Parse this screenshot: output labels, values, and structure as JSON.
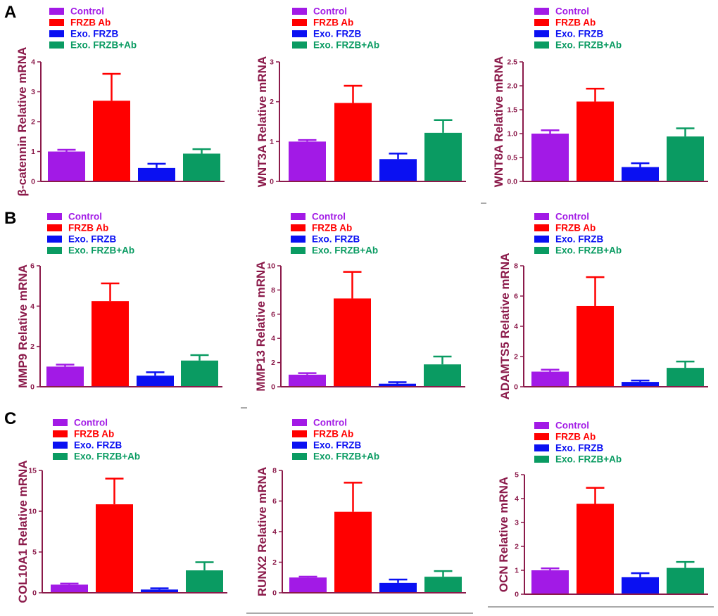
{
  "panels": [
    "A",
    "B",
    "C"
  ],
  "legend": [
    {
      "label": "Control",
      "color": "#A21AE6"
    },
    {
      "label": "FRZB Ab",
      "color": "#FF0000"
    },
    {
      "label": "Exo. FRZB",
      "color": "#0A10F2"
    },
    {
      "label": "Exo. FRZB+Ab",
      "color": "#0A9B62"
    }
  ],
  "chart_data": [
    {
      "type": "bar",
      "ylabel": "β-catennin Relative mRNA",
      "ylim": [
        0,
        4
      ],
      "ticks": [
        0,
        1,
        2,
        3,
        4
      ],
      "categories": [
        "Control",
        "FRZB Ab",
        "Exo. FRZB",
        "Exo. FRZB+Ab"
      ],
      "values": [
        1.0,
        2.7,
        0.45,
        0.93
      ],
      "errors": [
        0.06,
        0.9,
        0.14,
        0.15
      ]
    },
    {
      "type": "bar",
      "ylabel": "WNT3A Relative mRNA",
      "ylim": [
        0,
        3
      ],
      "ticks": [
        0,
        1,
        2,
        3
      ],
      "categories": [
        "Control",
        "FRZB Ab",
        "Exo. FRZB",
        "Exo. FRZB+Ab"
      ],
      "values": [
        1.0,
        1.97,
        0.56,
        1.22
      ],
      "errors": [
        0.04,
        0.43,
        0.14,
        0.32
      ]
    },
    {
      "type": "bar",
      "ylabel": "WNT8A Relative mRNA",
      "ylim": [
        0,
        2.5
      ],
      "ticks": [
        0.0,
        0.5,
        1.0,
        1.5,
        2.0,
        2.5
      ],
      "categories": [
        "Control",
        "FRZB Ab",
        "Exo. FRZB",
        "Exo. FRZB+Ab"
      ],
      "values": [
        1.0,
        1.67,
        0.3,
        0.94
      ],
      "errors": [
        0.07,
        0.27,
        0.08,
        0.17
      ]
    },
    {
      "type": "bar",
      "ylabel": "MMP9 Relative mRNA",
      "ylim": [
        0,
        6
      ],
      "ticks": [
        0,
        2,
        4,
        6
      ],
      "categories": [
        "Control",
        "FRZB Ab",
        "Exo. FRZB",
        "Exo. FRZB+Ab"
      ],
      "values": [
        1.0,
        4.25,
        0.55,
        1.3
      ],
      "errors": [
        0.1,
        0.88,
        0.17,
        0.27
      ]
    },
    {
      "type": "bar",
      "ylabel": "MMP13 Relative mRNA",
      "ylim": [
        0,
        10
      ],
      "ticks": [
        0,
        2,
        4,
        6,
        8,
        10
      ],
      "categories": [
        "Control",
        "FRZB Ab",
        "Exo. FRZB",
        "Exo. FRZB+Ab"
      ],
      "values": [
        1.0,
        7.3,
        0.25,
        1.85
      ],
      "errors": [
        0.13,
        2.2,
        0.13,
        0.65
      ]
    },
    {
      "type": "bar",
      "ylabel": "ADAMTS5 Relative mRNA",
      "ylim": [
        0,
        8
      ],
      "ticks": [
        0,
        2,
        4,
        6,
        8
      ],
      "categories": [
        "Control",
        "FRZB Ab",
        "Exo. FRZB",
        "Exo. FRZB+Ab"
      ],
      "values": [
        1.0,
        5.35,
        0.32,
        1.25
      ],
      "errors": [
        0.13,
        1.9,
        0.09,
        0.42
      ]
    },
    {
      "type": "bar",
      "ylabel": "COL10A1 Relative mRNA",
      "ylim": [
        0,
        15
      ],
      "ticks": [
        0,
        5,
        10,
        15
      ],
      "categories": [
        "Control",
        "FRZB Ab",
        "Exo. FRZB",
        "Exo. FRZB+Ab"
      ],
      "values": [
        1.0,
        10.85,
        0.4,
        2.75
      ],
      "errors": [
        0.13,
        3.15,
        0.15,
        1.0
      ]
    },
    {
      "type": "bar",
      "ylabel": "RUNX2 Relative mRNA",
      "ylim": [
        0,
        8
      ],
      "ticks": [
        0,
        2,
        4,
        6,
        8
      ],
      "categories": [
        "Control",
        "FRZB Ab",
        "Exo. FRZB",
        "Exo. FRZB+Ab"
      ],
      "values": [
        1.0,
        5.3,
        0.65,
        1.05
      ],
      "errors": [
        0.06,
        1.9,
        0.22,
        0.37
      ]
    },
    {
      "type": "bar",
      "ylabel": "OCN Relative mRNA",
      "ylim": [
        0,
        5
      ],
      "ticks": [
        0,
        1,
        2,
        3,
        4,
        5
      ],
      "categories": [
        "Control",
        "FRZB Ab",
        "Exo. FRZB",
        "Exo. FRZB+Ab"
      ],
      "values": [
        1.0,
        3.78,
        0.71,
        1.1
      ],
      "errors": [
        0.08,
        0.67,
        0.17,
        0.25
      ]
    }
  ]
}
